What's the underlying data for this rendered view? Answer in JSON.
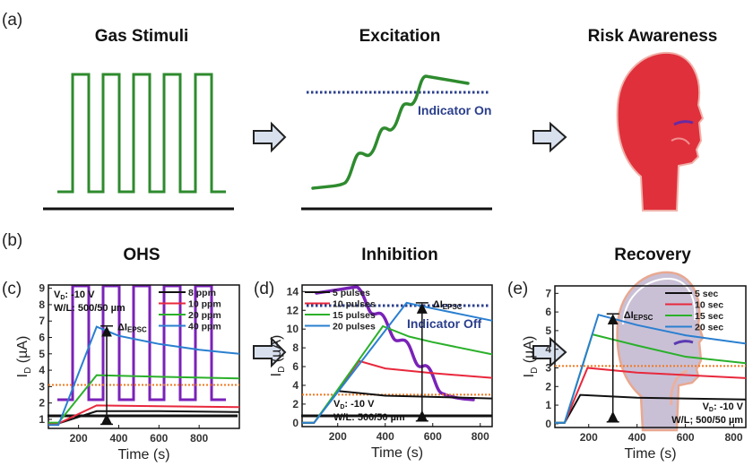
{
  "panels": {
    "a": {
      "label": "(a)",
      "stimulus_title": "Gas Stimuli",
      "response_title": "Excitation",
      "indicator": "Indicator On",
      "outcome_title": "Risk Awareness",
      "color": "#2e8b2e",
      "head_color": "#e0303c"
    },
    "b": {
      "label": "(b)",
      "stimulus_title": "OHS",
      "response_title": "Inhibition",
      "indicator": "Indicator Off",
      "outcome_title": "Recovery",
      "color": "#7a22b8",
      "head_color": "#c9c0d6"
    },
    "indicator_color": "#2b3f8c",
    "arrow_fill": "#d8e0ee"
  },
  "chart_data": [
    {
      "panel_label": "(c)",
      "type": "line",
      "xlabel": "Time (s)",
      "ylabel": "I",
      "ylabel_sub": "D",
      "ylabel_unit": " (µA)",
      "xlim": [
        50,
        1000
      ],
      "ylim": [
        0.45,
        9.2
      ],
      "xticks": [
        200,
        400,
        600,
        800
      ],
      "yticks": [
        1,
        2,
        3,
        4,
        5,
        6,
        7,
        8,
        9
      ],
      "annotation_lines": [
        "V_D: -10 V",
        "W/L: 500/50 µm"
      ],
      "annotation": {
        "vd_label": "V",
        "vd_sub": "D",
        "vd_value": ": -10 V",
        "wl": "W/L: 500/50 µm"
      },
      "delta_label": "ΔI",
      "delta_sub": "EPSC",
      "threshold": 3.1,
      "threshold_color": "#f07820",
      "arrow": {
        "x": 340,
        "y_from": 0.7,
        "y_to": 6.7
      },
      "legend_position": "top-right",
      "series": [
        {
          "name": "8 ppm",
          "color": "#111111",
          "x": [
            50,
            100,
            290,
            600,
            1000
          ],
          "y": [
            0.75,
            0.75,
            1.5,
            1.5,
            1.45
          ]
        },
        {
          "name": "10 ppm",
          "color": "#e8283c",
          "x": [
            50,
            100,
            290,
            600,
            1000
          ],
          "y": [
            0.75,
            0.75,
            1.85,
            1.8,
            1.75
          ]
        },
        {
          "name": "20 ppm",
          "color": "#2ab02a",
          "x": [
            50,
            100,
            290,
            600,
            1000
          ],
          "y": [
            0.8,
            0.8,
            3.7,
            3.6,
            3.5
          ]
        },
        {
          "name": "40 ppm",
          "color": "#2a7fd0",
          "x": [
            50,
            100,
            290,
            400,
            600,
            800,
            1000
          ],
          "y": [
            0.65,
            0.65,
            6.65,
            6.1,
            5.6,
            5.25,
            5.0
          ]
        }
      ]
    },
    {
      "panel_label": "(d)",
      "type": "line",
      "xlabel": "Time (s)",
      "ylabel": "I",
      "ylabel_sub": "D",
      "ylabel_unit": " (µA)",
      "xlim": [
        50,
        850
      ],
      "ylim": [
        -0.4,
        14.7
      ],
      "xticks": [
        200,
        400,
        600,
        800
      ],
      "yticks": [
        0,
        2,
        4,
        6,
        8,
        10,
        12,
        14
      ],
      "annotation": {
        "vd_label": "V",
        "vd_sub": "D",
        "vd_value": ": -10 V",
        "wl": "W/L: 500/50 µm"
      },
      "delta_label": "ΔI",
      "delta_sub": "EPSC",
      "threshold": 3.0,
      "threshold_color": "#f07820",
      "arrow": {
        "x": 555,
        "y_from": 0.2,
        "y_to": 12.8
      },
      "legend_position": "top-left",
      "series": [
        {
          "name": "5 pulses",
          "color": "#111111",
          "x": [
            50,
            100,
            200,
            400,
            850
          ],
          "y": [
            0,
            0,
            3.4,
            2.9,
            2.6
          ]
        },
        {
          "name": "10 pulses",
          "color": "#e8283c",
          "x": [
            50,
            100,
            290,
            400,
            600,
            850
          ],
          "y": [
            0,
            0,
            6.6,
            5.8,
            5.3,
            4.8
          ]
        },
        {
          "name": "15 pulses",
          "color": "#2ab02a",
          "x": [
            50,
            100,
            390,
            500,
            600,
            850
          ],
          "y": [
            0,
            0,
            10.3,
            9.2,
            8.6,
            7.3
          ]
        },
        {
          "name": "20 pulses",
          "color": "#2a7fd0",
          "x": [
            50,
            100,
            490,
            600,
            850
          ],
          "y": [
            0,
            0,
            12.8,
            12.2,
            10.9
          ]
        }
      ]
    },
    {
      "panel_label": "(e)",
      "type": "line",
      "xlabel": "Time (s)",
      "ylabel": "I",
      "ylabel_sub": "D",
      "ylabel_unit": " (µA)",
      "xlim": [
        60,
        850
      ],
      "ylim": [
        -0.2,
        7.4
      ],
      "xticks": [
        200,
        400,
        600,
        800
      ],
      "yticks": [
        0,
        1,
        2,
        3,
        4,
        5,
        6,
        7
      ],
      "annotation": {
        "vd_label": "V",
        "vd_sub": "D",
        "vd_value": ": -10 V",
        "wl": "W/L; 500/50 µm"
      },
      "delta_label": "ΔI",
      "delta_sub": "EPSC",
      "threshold": 3.1,
      "threshold_color": "#f07820",
      "arrow": {
        "x": 300,
        "y_from": 0.1,
        "y_to": 5.9
      },
      "legend_position": "top-right",
      "series": [
        {
          "name": "5 sec",
          "color": "#111111",
          "x": [
            60,
            100,
            165,
            400,
            850
          ],
          "y": [
            0.05,
            0.05,
            1.55,
            1.4,
            1.3
          ]
        },
        {
          "name": "10 sec",
          "color": "#e8283c",
          "x": [
            60,
            100,
            195,
            400,
            850
          ],
          "y": [
            0.05,
            0.05,
            3.0,
            2.75,
            2.45
          ]
        },
        {
          "name": "15 sec",
          "color": "#2ab02a",
          "x": [
            60,
            100,
            215,
            400,
            600,
            850
          ],
          "y": [
            0.05,
            0.05,
            4.8,
            4.2,
            3.6,
            3.25
          ]
        },
        {
          "name": "20 sec",
          "color": "#2a7fd0",
          "x": [
            60,
            100,
            240,
            400,
            600,
            850
          ],
          "y": [
            0.05,
            0.05,
            5.85,
            5.3,
            4.75,
            4.3
          ]
        }
      ]
    }
  ]
}
